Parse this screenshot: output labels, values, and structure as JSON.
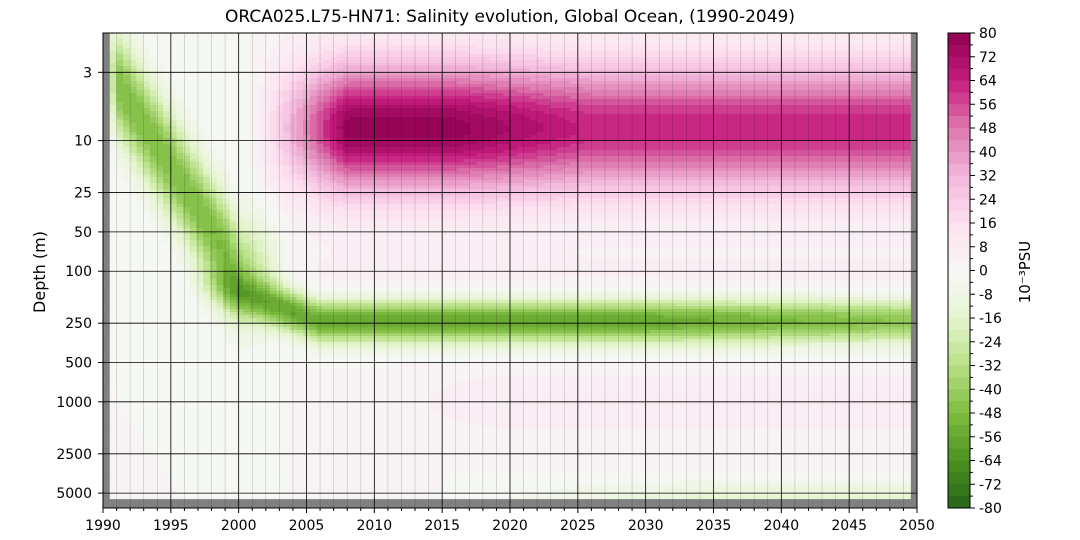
{
  "chart_data": {
    "type": "heatmap",
    "title": "ORCA025.L75-HN71: Salinity evolution, Global Ocean, (1990-2049)",
    "xlabel": "",
    "ylabel": "Depth (m)",
    "colorbar_label": "10⁻³PSU",
    "xlim": [
      1990,
      2050
    ],
    "x_ticks": [
      1990,
      1995,
      2000,
      2005,
      2010,
      2015,
      2020,
      2025,
      2030,
      2035,
      2040,
      2045,
      2050
    ],
    "y_scale": "log",
    "y_inverted": true,
    "ylim": [
      1.5,
      6500
    ],
    "y_ticks": [
      3,
      10,
      25,
      50,
      100,
      250,
      500,
      1000,
      2500,
      5000
    ],
    "grid": true,
    "colorbar_range": [
      -80,
      80
    ],
    "colorbar_step": 4,
    "colorbar_tick_labels": [
      "80",
      "72",
      "64",
      "56",
      "48",
      "40",
      "32",
      "24",
      "16",
      "8",
      "0",
      "-8",
      "-16",
      "-24",
      "-32",
      "-40",
      "-48",
      "-56",
      "-64",
      "-72",
      "-80"
    ],
    "colormap": {
      "negative": "#276419",
      "neutral": "#f7f7f7",
      "positive": "#8e0152"
    },
    "missing_color": "#808080",
    "features": [
      {
        "name": "surface salinification",
        "depth_range_m": [
          1.5,
          80
        ],
        "years": [
          2003,
          2049
        ],
        "peak_value": 78,
        "peak_year": 2011,
        "peak_depth_m": 8
      },
      {
        "name": "early surface freshening",
        "depth_range_m": [
          1.5,
          150
        ],
        "years": [
          1990,
          2000
        ],
        "peak_value": -45,
        "peak_depth_m": 60
      },
      {
        "name": "subsurface freshening",
        "depth_range_m": [
          120,
          400
        ],
        "years": [
          1998,
          2049
        ],
        "peak_value": -58,
        "peak_depth_m": 250
      },
      {
        "name": "weak intermediate salinification",
        "depth_range_m": [
          500,
          2000
        ],
        "years": [
          2010,
          2049
        ],
        "peak_value": 8
      },
      {
        "name": "weak deep freshening",
        "depth_range_m": [
          4000,
          6000
        ],
        "years": [
          2020,
          2049
        ],
        "peak_value": -12
      }
    ]
  }
}
